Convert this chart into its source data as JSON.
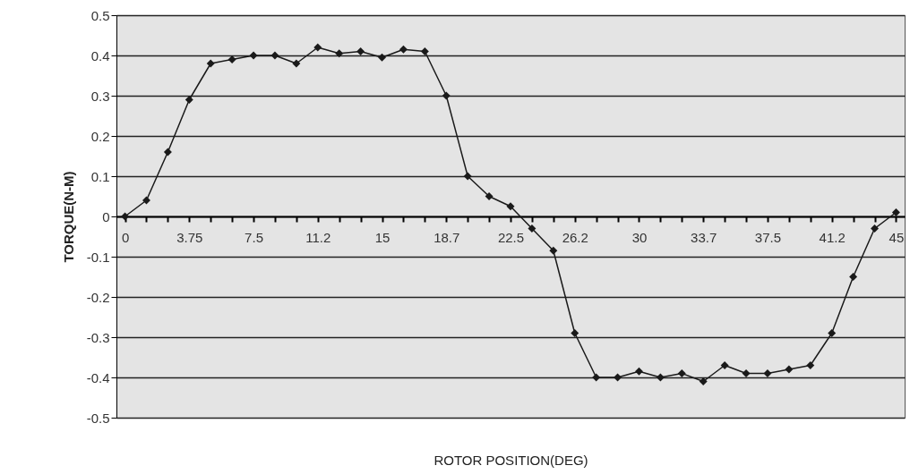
{
  "chart_data": {
    "type": "line",
    "xlabel": "ROTOR POSITION(DEG)",
    "ylabel": "TORQUE(N-M)",
    "x": [
      0,
      1.25,
      2.5,
      3.75,
      5,
      6.25,
      7.5,
      8.75,
      10,
      11.25,
      12.5,
      13.75,
      15,
      16.25,
      17.5,
      18.75,
      20,
      21.25,
      22.5,
      23.75,
      25,
      26.25,
      27.5,
      28.75,
      30,
      31.25,
      32.5,
      33.75,
      35,
      36.25,
      37.5,
      38.75,
      40,
      41.25,
      42.5,
      43.75,
      45
    ],
    "series": [
      {
        "color": "#1a1a1a",
        "values": [
          0,
          0.04,
          0.16,
          0.29,
          0.38,
          0.39,
          0.4,
          0.4,
          0.38,
          0.42,
          0.405,
          0.41,
          0.395,
          0.415,
          0.41,
          0.3,
          0.1,
          0.05,
          0.025,
          -0.03,
          -0.085,
          -0.29,
          -0.4,
          -0.4,
          -0.385,
          -0.4,
          -0.39,
          -0.41,
          -0.37,
          -0.39,
          -0.39,
          -0.38,
          -0.37,
          -0.29,
          -0.15,
          -0.03,
          0.01
        ]
      }
    ],
    "xlim": [
      -0.5,
      45.5
    ],
    "xticks": [
      0,
      {
        "value": 1.25,
        "label": null
      },
      {
        "value": 2.5,
        "label": null
      },
      3.75,
      {
        "value": 5,
        "label": null
      },
      {
        "value": 6.25,
        "label": null
      },
      7.5,
      {
        "value": 8.75,
        "label": null
      },
      {
        "value": 10,
        "label": null
      },
      {
        "value": 11.25,
        "label": "11.2"
      },
      {
        "value": 12.5,
        "label": null
      },
      {
        "value": 13.75,
        "label": null
      },
      15,
      {
        "value": 16.25,
        "label": null
      },
      {
        "value": 17.5,
        "label": null
      },
      {
        "value": 18.75,
        "label": "18.7"
      },
      {
        "value": 20,
        "label": null
      },
      {
        "value": 21.25,
        "label": null
      },
      22.5,
      {
        "value": 23.75,
        "label": null
      },
      {
        "value": 25,
        "label": null
      },
      {
        "value": 26.25,
        "label": "26.2"
      },
      {
        "value": 27.5,
        "label": null
      },
      {
        "value": 28.75,
        "label": null
      },
      30,
      {
        "value": 31.25,
        "label": null
      },
      {
        "value": 32.5,
        "label": null
      },
      {
        "value": 33.75,
        "label": "33.7"
      },
      {
        "value": 35,
        "label": null
      },
      {
        "value": 36.25,
        "label": null
      },
      37.5,
      {
        "value": 38.75,
        "label": null
      },
      {
        "value": 40,
        "label": null
      },
      {
        "value": 41.25,
        "label": "41.2"
      },
      {
        "value": 42.5,
        "label": null
      },
      {
        "value": 43.75,
        "label": null
      },
      45
    ],
    "ylim": [
      -0.5,
      0.5
    ],
    "yticks": [
      -0.5,
      -0.4,
      -0.3,
      -0.2,
      -0.1,
      0,
      0.1,
      0.2,
      0.3,
      0.4,
      0.5
    ],
    "grid": "y",
    "marker": "diamond",
    "line_style": "solid"
  }
}
